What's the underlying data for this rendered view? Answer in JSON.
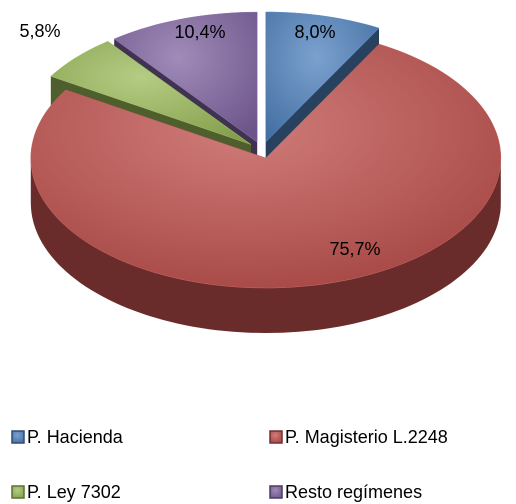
{
  "chart_data": {
    "type": "pie",
    "categories": [
      "P. Hacienda",
      "P. Magisterio L.2248",
      "P. Ley 7302",
      "Resto regímenes"
    ],
    "values": [
      8.0,
      75.7,
      5.8,
      10.4
    ],
    "value_labels": [
      "8,0%",
      "75,7%",
      "5,8%",
      "10,4%"
    ],
    "colors": [
      "#4f81bd",
      "#c0504d",
      "#9bbb59",
      "#8064a2"
    ],
    "legend": "bottom"
  }
}
